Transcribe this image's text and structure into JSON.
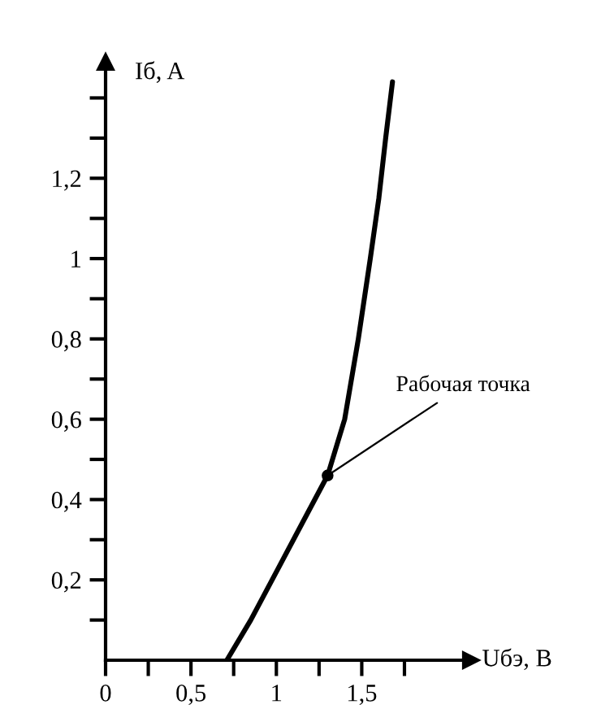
{
  "chart_data": {
    "type": "line",
    "xlabel": "Uбэ, B",
    "ylabel": "Iб, A",
    "series": [
      {
        "x": [
          0.71,
          0.85,
          1.0,
          1.15,
          1.3,
          1.4,
          1.48,
          1.55,
          1.6,
          1.64,
          1.68
        ],
        "values": [
          0,
          0.1,
          0.22,
          0.34,
          0.46,
          0.6,
          0.8,
          1.0,
          1.15,
          1.3,
          1.44
        ],
        "color": "#000000"
      },
      {
        "type": "scatter",
        "x": [
          1.3
        ],
        "values": [
          0.46
        ],
        "color": "#000000"
      }
    ],
    "annotations": [
      {
        "text": "Рабочая точка",
        "x": 1.3,
        "y": 0.46
      }
    ],
    "xlim": [
      0,
      2.14
    ],
    "ylim": [
      0,
      1.49
    ],
    "xticks": [
      {
        "value": 0,
        "label": "0"
      },
      {
        "value": 0.25,
        "label": null
      },
      {
        "value": 0.5,
        "label": "0,5"
      },
      {
        "value": 0.75,
        "label": null
      },
      {
        "value": 1,
        "label": "1"
      },
      {
        "value": 1.25,
        "label": null
      },
      {
        "value": 1.5,
        "label": "1,5"
      },
      {
        "value": 1.75,
        "label": null
      }
    ],
    "yticks": [
      {
        "value": 0.1,
        "label": null
      },
      {
        "value": 0.2,
        "label": "0,2"
      },
      {
        "value": 0.3,
        "label": null
      },
      {
        "value": 0.4,
        "label": "0,4"
      },
      {
        "value": 0.5,
        "label": null
      },
      {
        "value": 0.6,
        "label": "0,6"
      },
      {
        "value": 0.7,
        "label": null
      },
      {
        "value": 0.8,
        "label": "0,8"
      },
      {
        "value": 0.9,
        "label": null
      },
      {
        "value": 1,
        "label": "1"
      },
      {
        "value": 1.1,
        "label": null
      },
      {
        "value": 1.2,
        "label": "1,2"
      },
      {
        "value": 1.3,
        "label": null
      },
      {
        "value": 1.4,
        "label": null
      }
    ],
    "grid": false,
    "legend": false
  }
}
